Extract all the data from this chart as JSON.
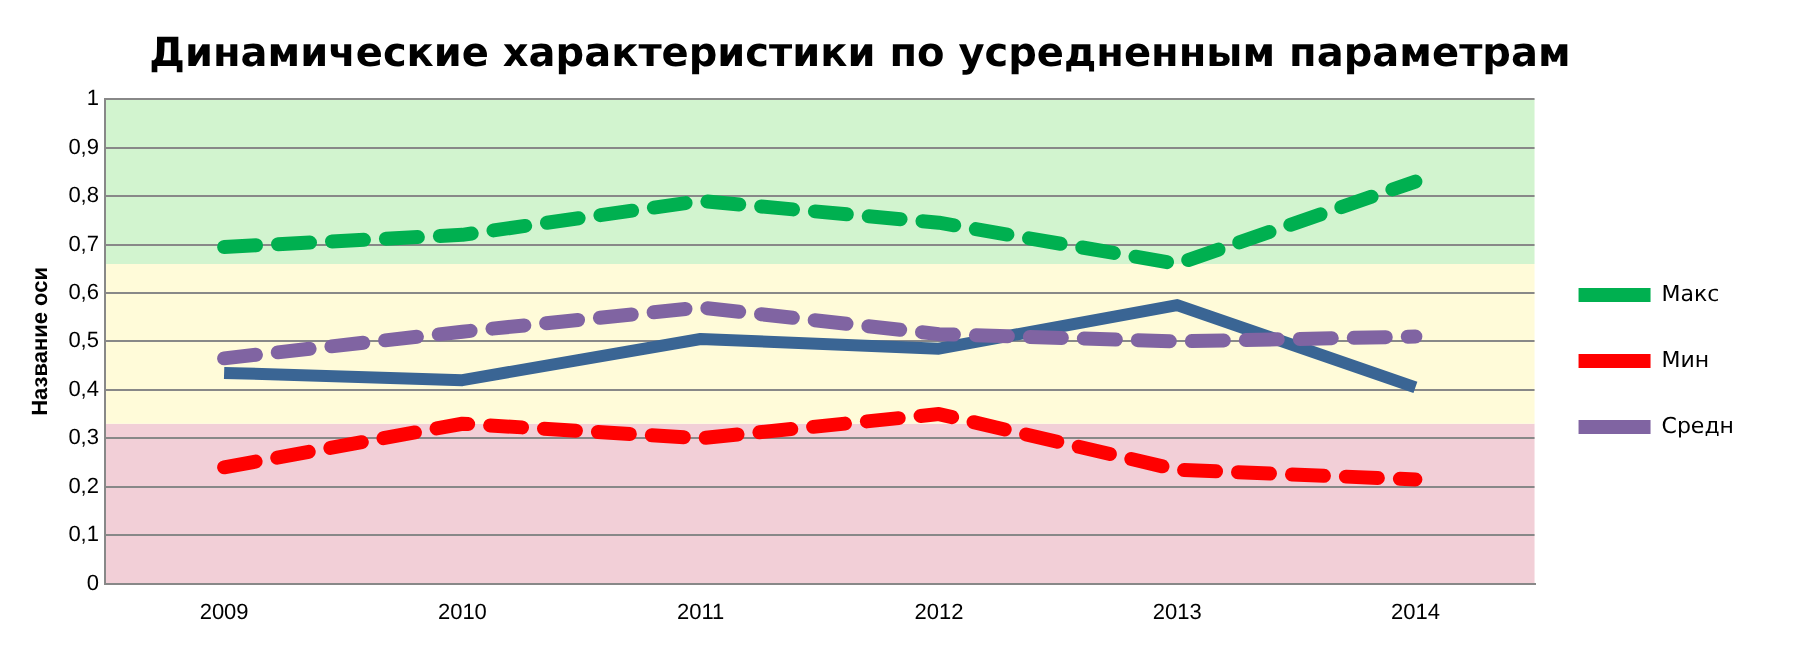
{
  "chart_data": {
    "type": "line",
    "title": "Динамические характеристики по усредненным параметрам",
    "ylabel": "Название оси",
    "categories": [
      "2009",
      "2010",
      "2011",
      "2012",
      "2013",
      "2014"
    ],
    "series": [
      {
        "name": "Макс",
        "color": "#00b050",
        "line_style": "dashed",
        "values": [
          0.695,
          0.72,
          0.79,
          0.745,
          0.66,
          0.83
        ]
      },
      {
        "name": "Мин",
        "color": "#ff0000",
        "line_style": "dashed",
        "values": [
          0.24,
          0.33,
          0.3,
          0.35,
          0.235,
          0.215
        ]
      },
      {
        "name": "Средн",
        "color": "#8064a2",
        "line_style": "dashed",
        "values": [
          0.465,
          0.52,
          0.57,
          0.515,
          0.5,
          0.51
        ]
      },
      {
        "color": "#3a6594",
        "line_style": "solid",
        "values": [
          0.435,
          0.42,
          0.505,
          0.485,
          0.575,
          0.405
        ]
      }
    ],
    "ylim": [
      0,
      1
    ],
    "yticks": [
      0,
      {
        "value": 0.1,
        "label": "0,1"
      },
      {
        "value": 0.2,
        "label": "0,2"
      },
      {
        "value": 0.3,
        "label": "0,3"
      },
      {
        "value": 0.4,
        "label": "0,4"
      },
      {
        "value": 0.5,
        "label": "0,5"
      },
      {
        "value": 0.6,
        "label": "0,6"
      },
      {
        "value": 0.7,
        "label": "0,7"
      },
      {
        "value": 0.8,
        "label": "0,8"
      },
      {
        "value": 0.9,
        "label": "0,9"
      },
      1
    ],
    "bands": [
      {
        "axis": "y",
        "from": 0,
        "to": 0.33,
        "color": "#f2cfd7"
      },
      {
        "axis": "y",
        "from": 0.33,
        "to": 0.66,
        "color": "#fffbd9"
      },
      {
        "axis": "y",
        "from": 0.66,
        "to": 1,
        "color": "#d2f4cf"
      }
    ],
    "grid": "y",
    "legend": "right",
    "marker": "none"
  }
}
